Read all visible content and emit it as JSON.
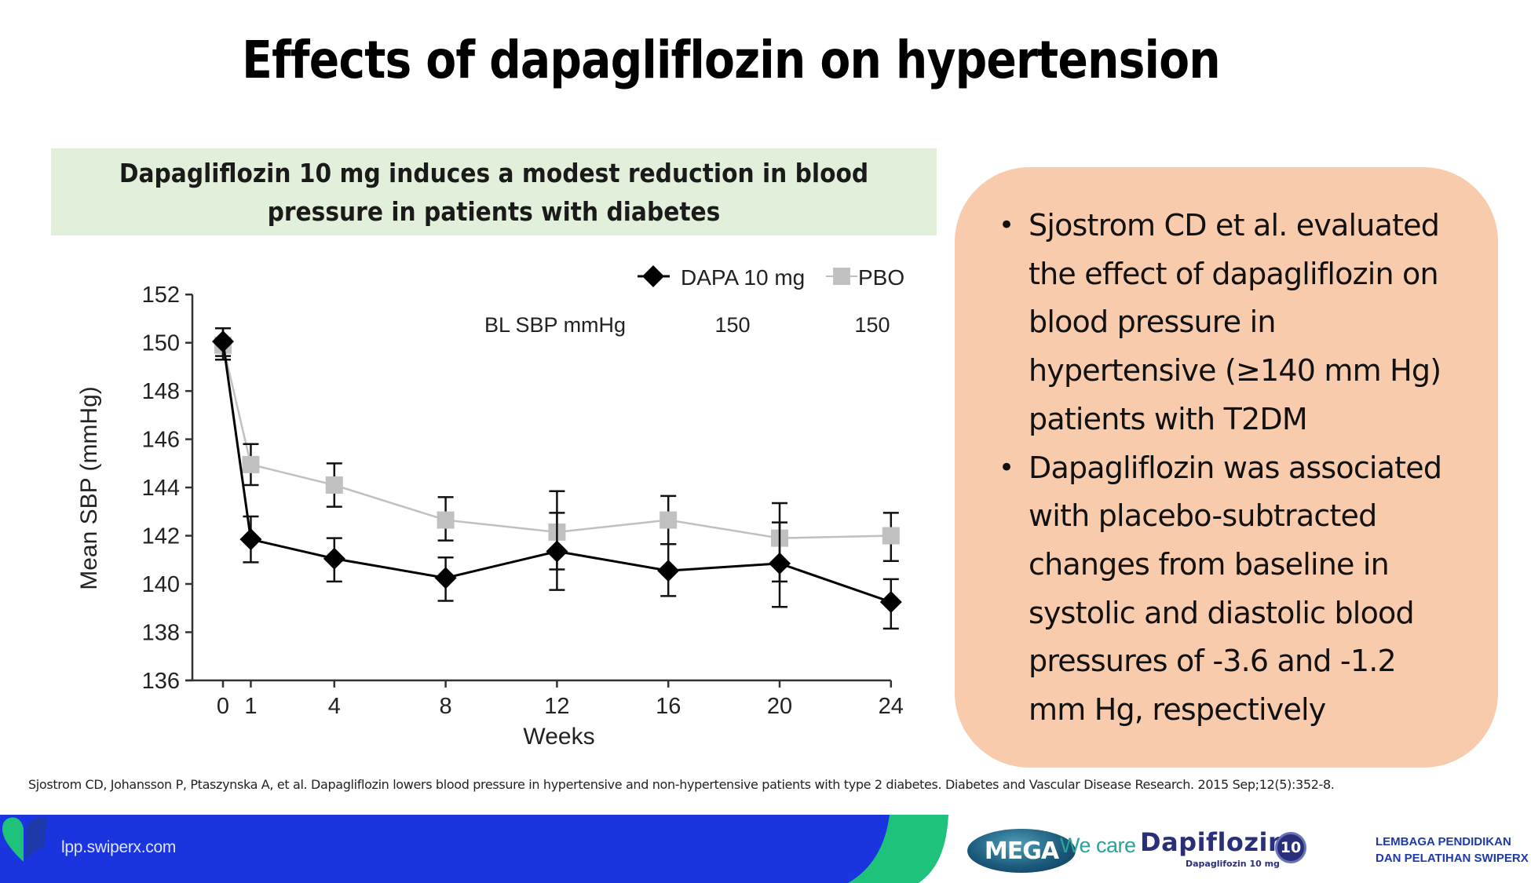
{
  "slide": {
    "title": "Effects of dapagliflozin on hypertension",
    "subtitle_line1": "Dapagliflozin 10 mg induces a modest reduction in blood",
    "subtitle_line2": "pressure in patients with diabetes",
    "colors": {
      "subtitle_band": "#e2efda",
      "callout": "#f8cbad",
      "footer_blue": "#1a35e0",
      "footer_green": "#1fc27a"
    }
  },
  "callout": {
    "bullets": [
      {
        "lines": [
          "Sjostrom CD et al. evaluated",
          "the effect of dapagliflozin on",
          "blood pressure in",
          "hypertensive (≥140 mm Hg)",
          "patients with T2DM"
        ]
      },
      {
        "lines": [
          "Dapagliflozin was associated",
          "with placebo-subtracted",
          "changes from baseline in",
          "systolic and diastolic blood",
          "pressures of -3.6 and -1.2",
          "mm Hg, respectively"
        ]
      }
    ],
    "bullet_glyph": "•"
  },
  "reference": "Sjostrom CD, Johansson P, Ptaszynska A, et al. Dapagliflozin lowers blood pressure in hypertensive and non-hypertensive patients with type 2 diabetes. Diabetes and Vascular Disease Research. 2015 Sep;12(5):352-8.",
  "footer": {
    "url": "lpp.swiperx.com",
    "logos": {
      "mega": "MEGA",
      "we_care": "We care",
      "product": "Dapiflozin",
      "product_sub": "Dapaglifozin 10 mg",
      "dose_badge": "10",
      "org_line1": "LEMBAGA PENDIDIKAN",
      "org_line2": "DAN PELATIHAN SWIPERX"
    }
  },
  "chart_data": {
    "type": "line",
    "title": "",
    "xlabel": "Weeks",
    "ylabel": "Mean SBP (mmHg)",
    "x": [
      0,
      1,
      4,
      8,
      12,
      16,
      20,
      24
    ],
    "x_ticks": [
      "0",
      "1",
      "4",
      "8",
      "12",
      "16",
      "20",
      "24"
    ],
    "xlim": [
      0,
      24
    ],
    "ylim": [
      136,
      152
    ],
    "y_ticks": [
      "136",
      "138",
      "140",
      "142",
      "144",
      "146",
      "148",
      "150",
      "152"
    ],
    "grid": false,
    "legend_position": "top-right",
    "baseline_row": {
      "label": "BL SBP mmHg",
      "values": [
        "150",
        "150"
      ]
    },
    "series": [
      {
        "name": "DAPA 10 mg",
        "marker": "diamond",
        "color": "#000000",
        "values": [
          150.05,
          141.85,
          141.05,
          140.25,
          141.35,
          140.55,
          140.85,
          139.25
        ],
        "error_upper": [
          150.6,
          142.8,
          141.9,
          141.1,
          142.95,
          141.65,
          142.55,
          140.2
        ],
        "error_lower": [
          149.45,
          140.9,
          140.1,
          139.3,
          139.75,
          139.5,
          139.05,
          138.15
        ]
      },
      {
        "name": "PBO",
        "marker": "square",
        "color": "#c0c0c0",
        "values": [
          149.9,
          144.95,
          144.1,
          142.65,
          142.15,
          142.65,
          141.9,
          142.0
        ],
        "error_upper": [
          150.6,
          145.8,
          145.0,
          143.6,
          143.85,
          143.65,
          143.35,
          142.95
        ],
        "error_lower": [
          149.3,
          144.1,
          143.2,
          141.8,
          140.6,
          141.65,
          140.1,
          140.95
        ]
      }
    ]
  }
}
